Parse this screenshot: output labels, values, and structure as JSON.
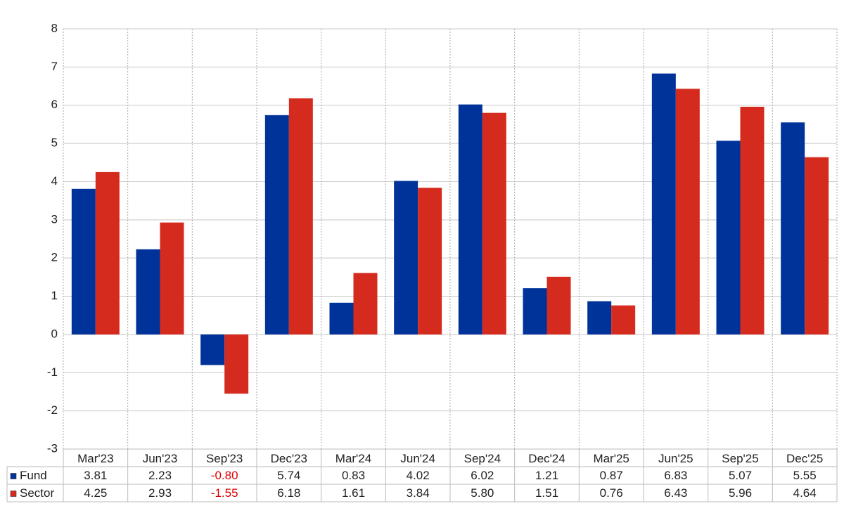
{
  "chart_data": {
    "type": "bar",
    "categories": [
      "Mar'23",
      "Jun'23",
      "Sep'23",
      "Dec'23",
      "Mar'24",
      "Jun'24",
      "Sep'24",
      "Dec'24",
      "Mar'25",
      "Jun'25",
      "Sep'25",
      "Dec'25"
    ],
    "series": [
      {
        "name": "Fund",
        "color": "#003399",
        "values": [
          3.81,
          2.23,
          -0.8,
          5.74,
          0.83,
          4.02,
          6.02,
          1.21,
          0.87,
          6.83,
          5.07,
          5.55
        ],
        "value_labels": [
          "3.81",
          "2.23",
          "-0.80",
          "5.74",
          "0.83",
          "4.02",
          "6.02",
          "1.21",
          "0.87",
          "6.83",
          "5.07",
          "5.55"
        ]
      },
      {
        "name": "Sector",
        "color": "#d52b1e",
        "values": [
          4.25,
          2.93,
          -1.55,
          6.18,
          1.61,
          3.84,
          5.8,
          1.51,
          0.76,
          6.43,
          5.96,
          4.64
        ],
        "value_labels": [
          "4.25",
          "2.93",
          "-1.55",
          "6.18",
          "1.61",
          "3.84",
          "5.80",
          "1.51",
          "0.76",
          "6.43",
          "5.96",
          "4.64"
        ]
      }
    ],
    "ylim": [
      -3,
      8
    ],
    "yticks": [
      -3,
      -2,
      -1,
      0,
      1,
      2,
      3,
      4,
      5,
      6,
      7,
      8
    ],
    "grid": true,
    "negative_color": "#e00000"
  }
}
